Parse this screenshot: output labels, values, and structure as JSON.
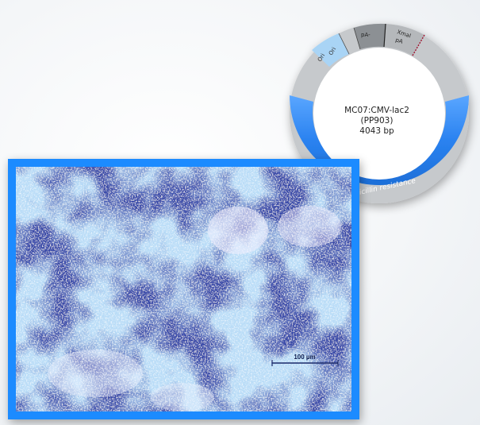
{
  "plasmid": {
    "name": "MC07:CMV-lac2",
    "id": "(PP903)",
    "size": "4043 bp",
    "segments": {
      "gray_left_label_1": "Ori",
      "gray_left_label_2": "Ori",
      "dark_label": "pA-",
      "right_label_1": "XmaI",
      "right_label_2": "pA",
      "blue_label": "ampicillin resistance"
    }
  },
  "micrograph": {
    "scale_bar_label": "100 µm"
  },
  "colors": {
    "plasmid_blue": "#2f86f0",
    "plasmid_gray": "#c9cccf",
    "plasmid_dark": "#8a8d90",
    "frame_blue": "#1f8bff",
    "stain_dark": "#3a4fb5"
  }
}
